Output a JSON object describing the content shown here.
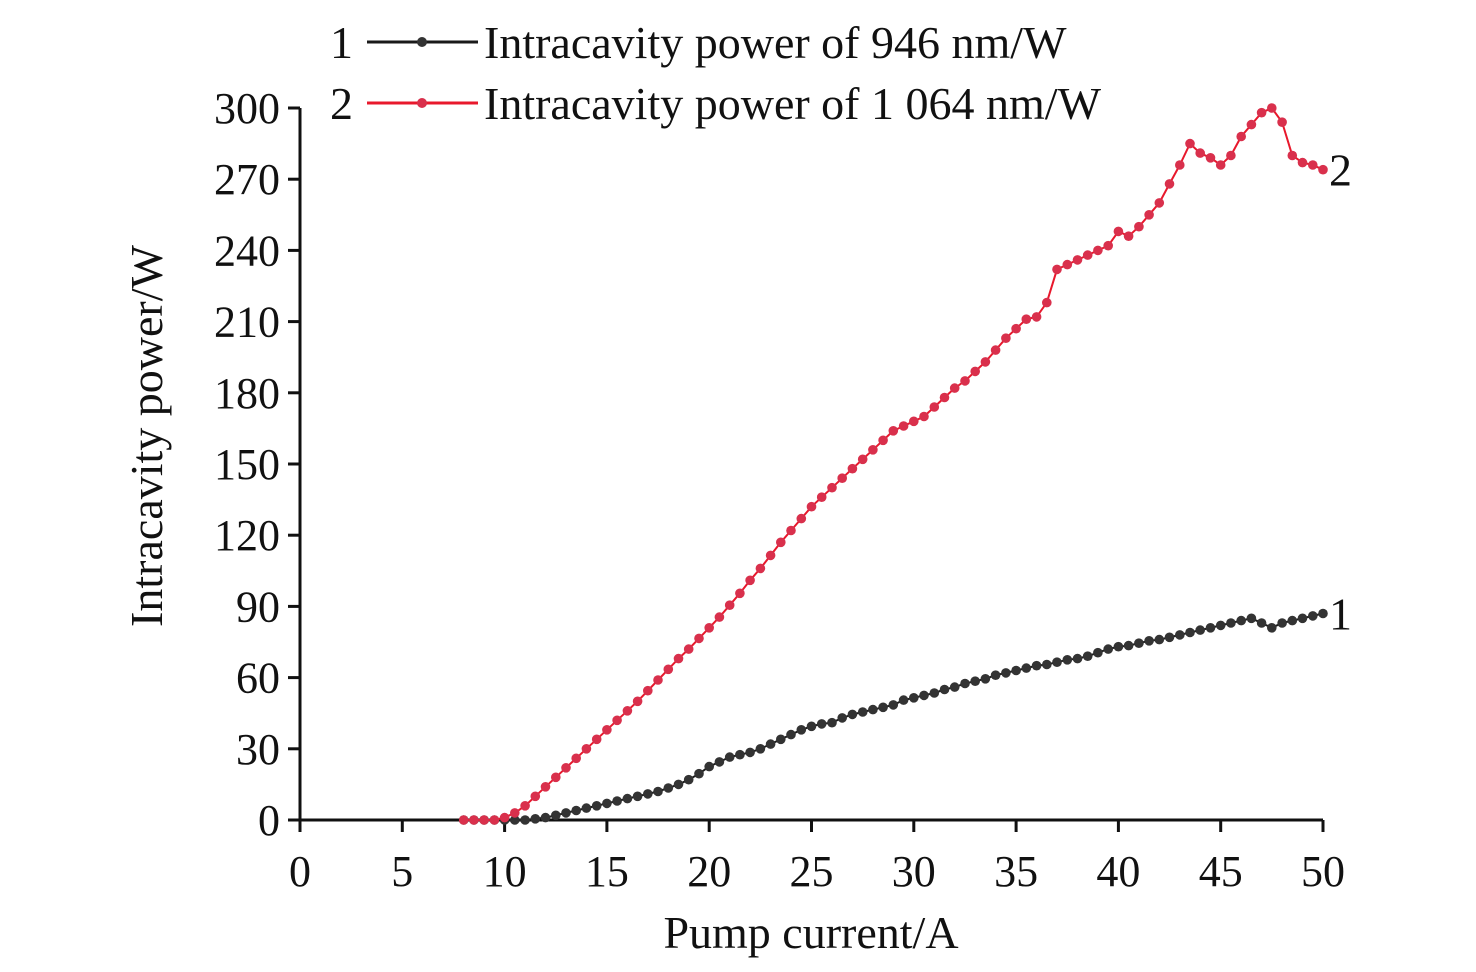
{
  "chart_data": {
    "type": "line",
    "title": "",
    "xlabel": "Pump current/A",
    "ylabel": "Intracavity power/W",
    "xlim": [
      0,
      50
    ],
    "ylim": [
      0,
      300
    ],
    "xticks": [
      "0",
      "5",
      "10",
      "15",
      "20",
      "25",
      "30",
      "35",
      "40",
      "45",
      "50"
    ],
    "yticks": [
      "0",
      "30",
      "60",
      "90",
      "120",
      "150",
      "180",
      "210",
      "240",
      "270",
      "300"
    ],
    "grid": false,
    "legend_position": "top",
    "series": [
      {
        "name": "Intracavity power of 946 nm/W",
        "legend_number": "1",
        "end_label": "1",
        "color": "#1a1a1a",
        "marker_color": "#333333",
        "x": [
          8,
          8.5,
          9,
          9.5,
          10,
          10.5,
          11,
          11.5,
          12,
          12.5,
          13,
          13.5,
          14,
          14.5,
          15,
          15.5,
          16,
          16.5,
          17,
          17.5,
          18,
          18.5,
          19,
          19.5,
          20,
          20.5,
          21,
          21.5,
          22,
          22.5,
          23,
          23.5,
          24,
          24.5,
          25,
          25.5,
          26,
          26.5,
          27,
          27.5,
          28,
          28.5,
          29,
          29.5,
          30,
          30.5,
          31,
          31.5,
          32,
          32.5,
          33,
          33.5,
          34,
          34.5,
          35,
          35.5,
          36,
          36.5,
          37,
          37.5,
          38,
          38.5,
          39,
          39.5,
          40,
          40.5,
          41,
          41.5,
          42,
          42.5,
          43,
          43.5,
          44,
          44.5,
          45,
          45.5,
          46,
          46.5,
          47,
          47.5,
          48,
          48.5,
          49,
          49.5,
          50
        ],
        "y": [
          0,
          0,
          0,
          0,
          0,
          0,
          0,
          0.5,
          1,
          2,
          3,
          4,
          5,
          6,
          7,
          8,
          9,
          10,
          11,
          12,
          13.5,
          15,
          17,
          19.5,
          22.5,
          24.5,
          26.5,
          27.5,
          28.5,
          30,
          32,
          34,
          36,
          38,
          39.5,
          40.5,
          41,
          43,
          44.5,
          45.5,
          46.5,
          47.5,
          48.5,
          50.5,
          51.5,
          52.5,
          53.5,
          55,
          56,
          57.5,
          58.5,
          59.5,
          61,
          62,
          63,
          64,
          65,
          65.5,
          66.5,
          67.5,
          68,
          69,
          70.5,
          72,
          73,
          73.5,
          74.5,
          75.5,
          76,
          77,
          78,
          79,
          80,
          81,
          82,
          83,
          84,
          85,
          83,
          81,
          83,
          84,
          85,
          86,
          87
        ]
      },
      {
        "name": "Intracavity power of 1 064 nm/W",
        "legend_number": "2",
        "end_label": "2",
        "color": "#e8182c",
        "marker_color": "#d9304c",
        "x": [
          8,
          8.5,
          9,
          9.5,
          10,
          10.5,
          11,
          11.5,
          12,
          12.5,
          13,
          13.5,
          14,
          14.5,
          15,
          15.5,
          16,
          16.5,
          17,
          17.5,
          18,
          18.5,
          19,
          19.5,
          20,
          20.5,
          21,
          21.5,
          22,
          22.5,
          23,
          23.5,
          24,
          24.5,
          25,
          25.5,
          26,
          26.5,
          27,
          27.5,
          28,
          28.5,
          29,
          29.5,
          30,
          30.5,
          31,
          31.5,
          32,
          32.5,
          33,
          33.5,
          34,
          34.5,
          35,
          35.5,
          36,
          36.5,
          37,
          37.5,
          38,
          38.5,
          39,
          39.5,
          40,
          40.5,
          41,
          41.5,
          42,
          42.5,
          43,
          43.5,
          44,
          44.5,
          45,
          45.5,
          46,
          46.5,
          47,
          47.5,
          48,
          48.5,
          49,
          49.5,
          50
        ],
        "y": [
          0,
          0,
          0,
          0,
          1,
          3,
          6,
          10,
          14,
          18,
          22,
          26,
          30,
          34,
          38,
          42,
          46,
          50,
          54.5,
          59,
          63.5,
          68,
          72,
          76.5,
          81,
          85.5,
          90.5,
          95.5,
          101,
          106,
          111.5,
          117,
          122,
          127,
          132,
          136,
          140,
          144,
          148,
          152,
          156,
          160,
          164,
          166,
          168,
          170,
          174,
          178,
          182,
          185,
          189,
          193,
          198,
          203,
          207,
          211,
          212,
          218,
          232,
          234,
          236,
          238,
          240,
          242,
          248,
          246,
          250,
          255,
          260,
          268,
          276,
          285,
          281,
          279,
          276,
          280,
          288,
          293,
          298,
          300,
          294,
          280,
          277,
          276,
          274
        ]
      }
    ]
  }
}
